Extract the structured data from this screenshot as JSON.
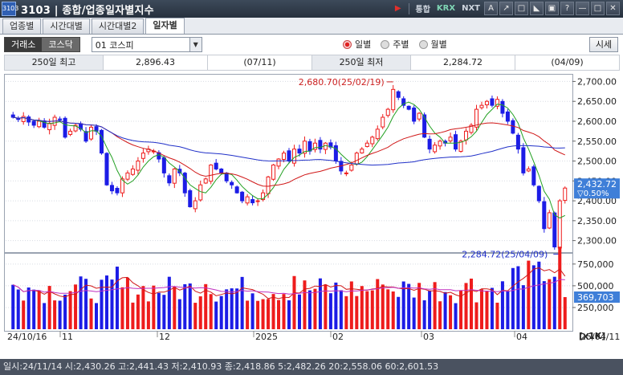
{
  "window": {
    "logo": "3103",
    "title": "3103 | 종합/업종일자별지수",
    "toolbar": [
      "통합",
      "KRX",
      "NXT",
      "A",
      "↗",
      "□",
      "◣",
      "▣",
      "?",
      "—",
      "□",
      "✕"
    ]
  },
  "tabs": [
    {
      "label": "업종별",
      "active": false
    },
    {
      "label": "시간대별",
      "active": false
    },
    {
      "label": "시간대별2",
      "active": false
    },
    {
      "label": "일자별",
      "active": true
    }
  ],
  "controls": {
    "market_on": "거래소",
    "market_off": "코스닥",
    "index_select": "01  코스피",
    "radio_options": [
      {
        "label": "일별",
        "selected": true
      },
      {
        "label": "주별",
        "selected": false
      },
      {
        "label": "월별",
        "selected": false
      }
    ],
    "quote_button": "시세"
  },
  "info": {
    "high_label": "250일 최고",
    "high_value": "2,896.43",
    "high_date": "(07/11)",
    "low_label": "250일 최저",
    "low_value": "2,284.72",
    "low_date": "(04/09)"
  },
  "chart_data": {
    "type": "candlestick",
    "price_axis": {
      "ticks": [
        "2,700.00",
        "2,650.00",
        "2,600.00",
        "2,550.00",
        "2,500.00",
        "2,450.00",
        "2,400.00",
        "2,350.00",
        "2,300.00"
      ],
      "ylim": [
        2275,
        2715
      ]
    },
    "volume_axis": {
      "ticks": [
        "750,000",
        "500,000",
        "250,000"
      ],
      "unit": "[x1K]",
      "ylim": [
        0,
        850000
      ]
    },
    "x_labels": [
      "24/10/16",
      "11",
      "12",
      "2025",
      "02",
      "03",
      "04",
      "25/04/11"
    ],
    "annotations": {
      "high": "2,680.70(25/02/19)",
      "low": "2,284.72(25/04/09)"
    },
    "current_price": {
      "value": "2,432.72",
      "change": "▽0.50%"
    },
    "current_volume": "369,703",
    "colors": {
      "up": "#ee1c1c",
      "down": "#1c1ce6",
      "ma5": "#22a022",
      "ma20": "#d01818",
      "ma60": "#2030c8",
      "vol_ma1": "#d01818",
      "vol_ma2": "#c030c0",
      "last_price_badge": "#3f7fd8"
    },
    "closes": [
      2610,
      2605,
      2612,
      2598,
      2590,
      2600,
      2585,
      2595,
      2610,
      2605,
      2560,
      2575,
      2590,
      2580,
      2550,
      2585,
      2575,
      2520,
      2440,
      2425,
      2420,
      2455,
      2470,
      2480,
      2500,
      2520,
      2530,
      2525,
      2505,
      2470,
      2445,
      2480,
      2470,
      2420,
      2385,
      2400,
      2440,
      2455,
      2490,
      2480,
      2470,
      2450,
      2440,
      2420,
      2400,
      2410,
      2395,
      2400,
      2420,
      2460,
      2490,
      2505,
      2520,
      2500,
      2530,
      2520,
      2550,
      2525,
      2545,
      2530,
      2545,
      2535,
      2500,
      2475,
      2470,
      2490,
      2520,
      2530,
      2545,
      2560,
      2580,
      2610,
      2630,
      2680,
      2660,
      2640,
      2630,
      2600,
      2620,
      2560,
      2530,
      2540,
      2550,
      2545,
      2560,
      2530,
      2550,
      2575,
      2590,
      2630,
      2640,
      2650,
      2640,
      2655,
      2620,
      2600,
      2570,
      2530,
      2470,
      2480,
      2440,
      2400,
      2330,
      2370,
      2284,
      2400,
      2432
    ]
  },
  "status_bar": "일시:24/11/14 시:2,430.26 고:2,441.43 저:2,410.93 종:2,418.86 5:2,482.26 20:2,558.06 60:2,601.53"
}
